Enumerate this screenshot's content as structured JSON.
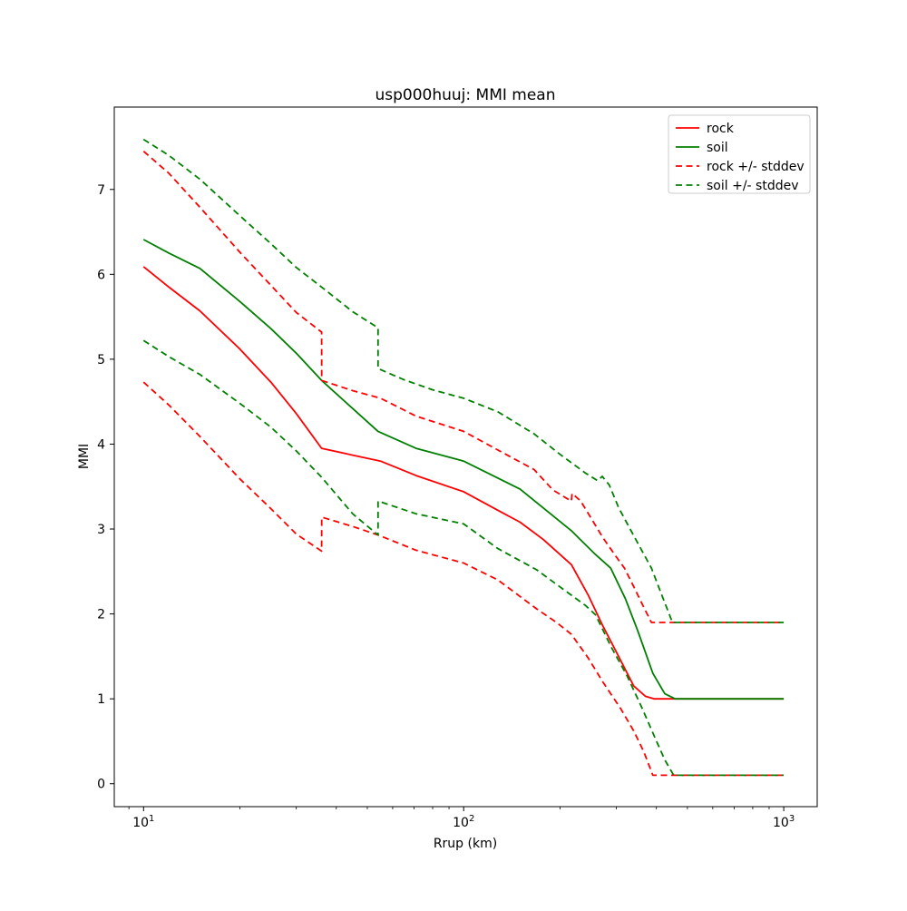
{
  "colors": {
    "rock": "#ff0000",
    "soil": "#008000",
    "spine": "#000000",
    "text": "#000000",
    "legend_border": "#cccccc",
    "background": "#ffffff"
  },
  "chart_data": {
    "type": "line",
    "title": "usp000huuj: MMI mean",
    "xlabel": "Rrup (km)",
    "ylabel": "MMI",
    "x_scale": "log",
    "xlim": [
      8.1,
      1272
    ],
    "ylim": [
      -0.27,
      7.97
    ],
    "grid": false,
    "legend_position": "upper right",
    "x_major_ticks": [
      {
        "value": 10,
        "label": "10^1"
      },
      {
        "value": 100,
        "label": "10^2"
      },
      {
        "value": 1000,
        "label": "10^3"
      }
    ],
    "x_minor_ticks": [
      9,
      20,
      30,
      40,
      50,
      60,
      70,
      80,
      90,
      200,
      300,
      400,
      500,
      600,
      700,
      800,
      900
    ],
    "y_major_ticks": [
      {
        "value": 0,
        "label": "0"
      },
      {
        "value": 1,
        "label": "1"
      },
      {
        "value": 2,
        "label": "2"
      },
      {
        "value": 3,
        "label": "3"
      },
      {
        "value": 4,
        "label": "4"
      },
      {
        "value": 5,
        "label": "5"
      },
      {
        "value": 6,
        "label": "6"
      },
      {
        "value": 7,
        "label": "7"
      }
    ],
    "legend": [
      {
        "label": "rock",
        "color_key": "rock",
        "style": "solid"
      },
      {
        "label": "soil",
        "color_key": "soil",
        "style": "solid"
      },
      {
        "label": "rock +/- stddev",
        "color_key": "rock",
        "style": "dashed"
      },
      {
        "label": "soil +/- stddev",
        "color_key": "soil",
        "style": "dashed"
      }
    ],
    "series": [
      {
        "name": "rock-mean",
        "color_key": "rock",
        "style": "solid",
        "points": [
          [
            10,
            6.09
          ],
          [
            12,
            5.85
          ],
          [
            15,
            5.57
          ],
          [
            20,
            5.12
          ],
          [
            25,
            4.73
          ],
          [
            30,
            4.36
          ],
          [
            36,
            3.95
          ],
          [
            45,
            3.87
          ],
          [
            55,
            3.8
          ],
          [
            71,
            3.63
          ],
          [
            100,
            3.44
          ],
          [
            128,
            3.22
          ],
          [
            150,
            3.08
          ],
          [
            177,
            2.88
          ],
          [
            217,
            2.58
          ],
          [
            245,
            2.22
          ],
          [
            272,
            1.86
          ],
          [
            300,
            1.55
          ],
          [
            340,
            1.15
          ],
          [
            370,
            1.03
          ],
          [
            394,
            1.0
          ],
          [
            1000,
            1.0
          ]
        ]
      },
      {
        "name": "soil-mean",
        "color_key": "soil",
        "style": "solid",
        "points": [
          [
            10,
            6.41
          ],
          [
            12,
            6.25
          ],
          [
            15,
            6.07
          ],
          [
            20,
            5.68
          ],
          [
            25,
            5.36
          ],
          [
            30,
            5.07
          ],
          [
            36,
            4.75
          ],
          [
            45,
            4.42
          ],
          [
            54,
            4.15
          ],
          [
            71,
            3.95
          ],
          [
            100,
            3.8
          ],
          [
            128,
            3.6
          ],
          [
            150,
            3.47
          ],
          [
            177,
            3.25
          ],
          [
            217,
            2.98
          ],
          [
            258,
            2.7
          ],
          [
            288,
            2.54
          ],
          [
            320,
            2.18
          ],
          [
            350,
            1.8
          ],
          [
            390,
            1.3
          ],
          [
            425,
            1.06
          ],
          [
            458,
            1.0
          ],
          [
            1000,
            1.0
          ]
        ]
      },
      {
        "name": "rock-plus-stddev",
        "color_key": "rock",
        "style": "dashed",
        "points": [
          [
            10,
            7.45
          ],
          [
            12,
            7.19
          ],
          [
            15,
            6.79
          ],
          [
            20,
            6.26
          ],
          [
            25,
            5.87
          ],
          [
            30,
            5.55
          ],
          [
            36,
            5.32
          ],
          [
            36.01,
            4.75
          ],
          [
            45,
            4.63
          ],
          [
            55,
            4.54
          ],
          [
            71,
            4.33
          ],
          [
            100,
            4.15
          ],
          [
            128,
            3.93
          ],
          [
            166,
            3.7
          ],
          [
            190,
            3.46
          ],
          [
            210,
            3.36
          ],
          [
            217,
            3.33
          ],
          [
            218,
            3.42
          ],
          [
            232,
            3.33
          ],
          [
            250,
            3.13
          ],
          [
            272,
            2.9
          ],
          [
            300,
            2.67
          ],
          [
            318,
            2.54
          ],
          [
            340,
            2.32
          ],
          [
            365,
            2.08
          ],
          [
            386,
            1.9
          ],
          [
            1000,
            1.9
          ]
        ]
      },
      {
        "name": "rock-minus-stddev",
        "color_key": "rock",
        "style": "dashed",
        "points": [
          [
            10,
            4.73
          ],
          [
            12,
            4.46
          ],
          [
            15,
            4.09
          ],
          [
            20,
            3.59
          ],
          [
            25,
            3.24
          ],
          [
            30,
            2.94
          ],
          [
            36,
            2.74
          ],
          [
            36.01,
            3.14
          ],
          [
            45,
            3.03
          ],
          [
            54,
            2.93
          ],
          [
            71,
            2.75
          ],
          [
            100,
            2.6
          ],
          [
            128,
            2.4
          ],
          [
            169,
            2.06
          ],
          [
            195,
            1.9
          ],
          [
            217,
            1.76
          ],
          [
            245,
            1.48
          ],
          [
            272,
            1.2
          ],
          [
            310,
            0.88
          ],
          [
            340,
            0.62
          ],
          [
            365,
            0.38
          ],
          [
            390,
            0.1
          ],
          [
            1000,
            0.1
          ]
        ]
      },
      {
        "name": "soil-plus-stddev",
        "color_key": "soil",
        "style": "dashed",
        "points": [
          [
            10,
            7.59
          ],
          [
            12,
            7.4
          ],
          [
            15,
            7.12
          ],
          [
            20,
            6.69
          ],
          [
            25,
            6.36
          ],
          [
            30,
            6.08
          ],
          [
            36,
            5.85
          ],
          [
            45,
            5.56
          ],
          [
            54,
            5.37
          ],
          [
            54.01,
            4.89
          ],
          [
            65,
            4.76
          ],
          [
            80,
            4.64
          ],
          [
            100,
            4.54
          ],
          [
            128,
            4.38
          ],
          [
            166,
            4.12
          ],
          [
            200,
            3.88
          ],
          [
            240,
            3.66
          ],
          [
            262,
            3.57
          ],
          [
            271,
            3.62
          ],
          [
            285,
            3.52
          ],
          [
            305,
            3.25
          ],
          [
            340,
            2.92
          ],
          [
            386,
            2.54
          ],
          [
            420,
            2.18
          ],
          [
            449,
            1.9
          ],
          [
            1000,
            1.9
          ]
        ]
      },
      {
        "name": "soil-minus-stddev",
        "color_key": "soil",
        "style": "dashed",
        "points": [
          [
            10,
            5.22
          ],
          [
            12,
            5.03
          ],
          [
            15,
            4.82
          ],
          [
            20,
            4.48
          ],
          [
            25,
            4.2
          ],
          [
            30,
            3.92
          ],
          [
            36,
            3.61
          ],
          [
            45,
            3.18
          ],
          [
            54,
            2.93
          ],
          [
            54.01,
            3.33
          ],
          [
            71,
            3.18
          ],
          [
            100,
            3.06
          ],
          [
            128,
            2.77
          ],
          [
            169,
            2.52
          ],
          [
            217,
            2.22
          ],
          [
            240,
            2.1
          ],
          [
            258,
            1.99
          ],
          [
            290,
            1.6
          ],
          [
            324,
            1.27
          ],
          [
            360,
            0.9
          ],
          [
            395,
            0.55
          ],
          [
            425,
            0.28
          ],
          [
            453,
            0.1
          ],
          [
            1000,
            0.1
          ]
        ]
      }
    ]
  }
}
